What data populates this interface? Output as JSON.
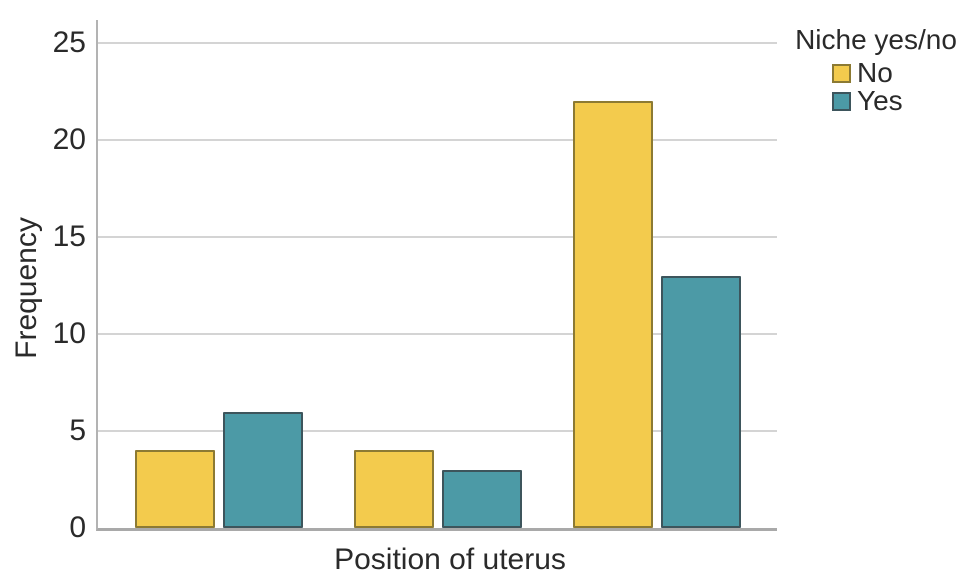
{
  "chart_data": {
    "type": "bar",
    "title": "",
    "xlabel": "Position of uterus",
    "ylabel": "Frequency",
    "categories": [
      "",
      "",
      ""
    ],
    "series": [
      {
        "name": "No",
        "values": [
          4,
          4,
          22
        ],
        "fill": "#F3CB4D",
        "border": "#8C7A33"
      },
      {
        "name": "Yes",
        "values": [
          6,
          3,
          13
        ],
        "fill": "#4C9AA6",
        "border": "#3D555C"
      }
    ],
    "yticks": [
      0,
      5,
      10,
      15,
      20,
      25
    ],
    "ylim": [
      0,
      26.2
    ],
    "grid": "horizontal",
    "legend": {
      "title": "Niche yes/no",
      "position": "top-right"
    }
  }
}
